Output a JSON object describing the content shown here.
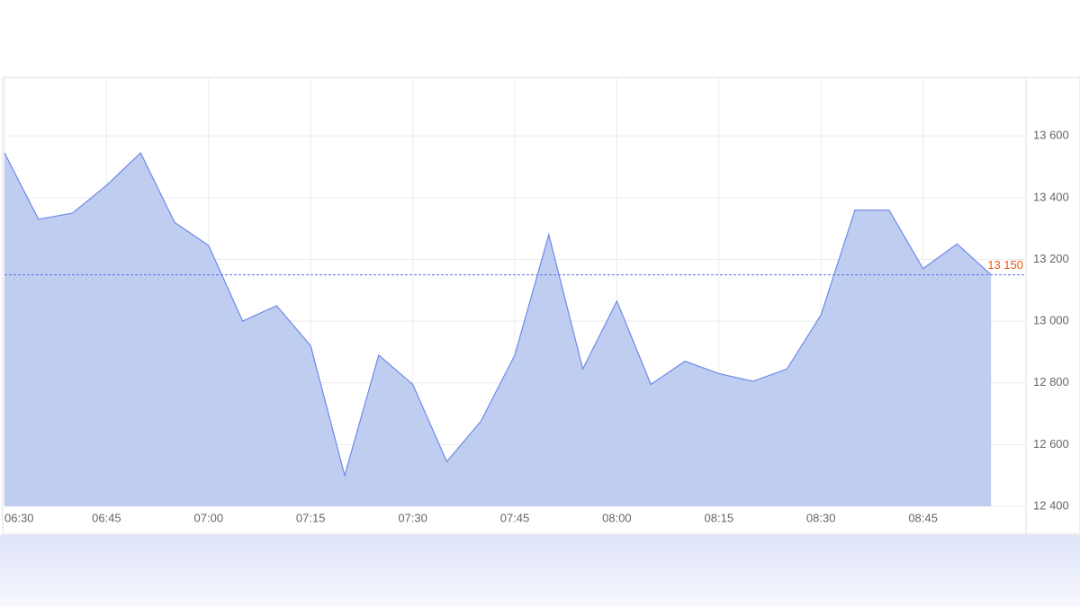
{
  "chart_data": {
    "type": "area",
    "categories": [
      "06:30",
      null,
      null,
      "06:45",
      null,
      null,
      "07:00",
      null,
      null,
      "07:15",
      null,
      null,
      "07:30",
      null,
      null,
      "07:45",
      null,
      null,
      "08:00",
      null,
      null,
      "08:15",
      null,
      null,
      "08:30",
      null,
      null,
      "08:45",
      null,
      null
    ],
    "values": [
      13545,
      13330,
      13350,
      13440,
      13545,
      13320,
      13245,
      13000,
      13050,
      12920,
      12500,
      12890,
      12795,
      12545,
      12675,
      12890,
      13280,
      12845,
      13065,
      12795,
      12870,
      12830,
      12805,
      12845,
      13020,
      13360,
      13360,
      13170,
      13250,
      13150
    ],
    "color": "#6f8ae8",
    "fill": "#bfcdf1",
    "ylim": [
      12400,
      13787
    ],
    "yticks": [
      {
        "value": 12400,
        "label": "12 400"
      },
      {
        "value": 12600,
        "label": "12 600"
      },
      {
        "value": 12800,
        "label": "12 800"
      },
      {
        "value": 13000,
        "label": "13 000"
      },
      {
        "value": 13200,
        "label": "13 200"
      },
      {
        "value": 13400,
        "label": "13 400"
      },
      {
        "value": 13600,
        "label": "13 600"
      }
    ],
    "grid": true,
    "reference_line": {
      "value": 13150,
      "label": "13 150",
      "color": "#e8590c"
    }
  }
}
